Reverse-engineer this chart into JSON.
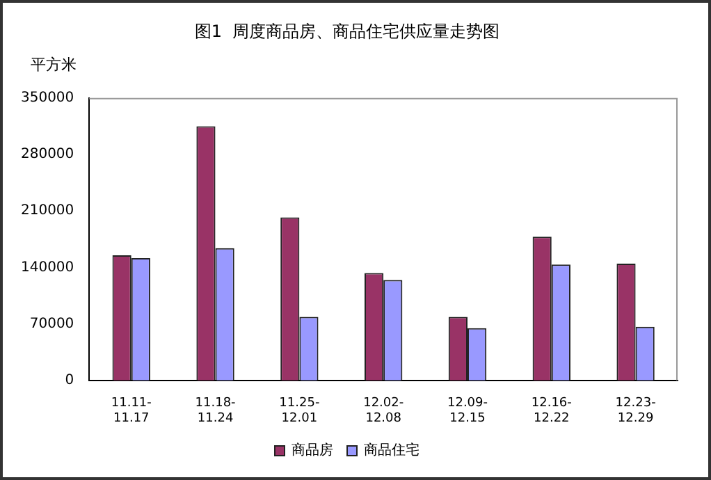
{
  "chart_data": {
    "type": "bar",
    "title": "图1  周度商品房、商品住宅供应量走势图",
    "ylabel": "平方米",
    "categories": [
      "11.11-\n11.17",
      "11.18-\n11.24",
      "11.25-\n12.01",
      "12.02-\n12.08",
      "12.09-\n12.15",
      "12.16-\n12.22",
      "12.23-\n12.29"
    ],
    "series": [
      {
        "name": "商品房",
        "color": "#993366",
        "values": [
          155000,
          315000,
          202000,
          133000,
          78700,
          178000,
          144700
        ]
      },
      {
        "name": "商品住宅",
        "color": "#9999ff",
        "values": [
          151500,
          163800,
          78700,
          124300,
          64700,
          143500,
          66500
        ]
      }
    ],
    "ylim": [
      0,
      350000
    ],
    "yticks": [
      0,
      70000,
      140000,
      210000,
      280000,
      350000
    ],
    "grid": false,
    "legend": "bottom"
  }
}
